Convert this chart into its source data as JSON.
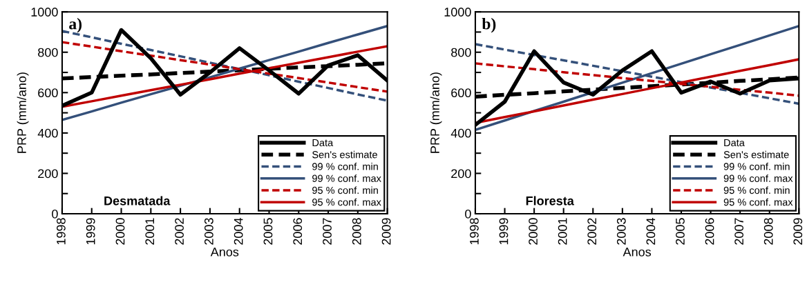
{
  "chart_data": [
    {
      "type": "line",
      "xlabel": "Anos",
      "ylabel": "PRP (mm/ano)",
      "annotations": [
        "a)",
        "Desmatada"
      ],
      "categories": [
        "1998",
        "1999",
        "2000",
        "2001",
        "2002",
        "2003",
        "2004",
        "2005",
        "2006",
        "2007",
        "2008",
        "2009"
      ],
      "ylim": [
        0,
        1000
      ],
      "yticks": [
        0,
        {
          "value": 100,
          "label": null
        },
        200,
        {
          "value": 300,
          "label": null
        },
        400,
        {
          "value": 500,
          "label": null
        },
        600,
        {
          "value": 700,
          "label": null
        },
        800,
        {
          "value": 900,
          "label": null
        },
        1000
      ],
      "grid": false,
      "legend": "bottom right",
      "marker": "none",
      "series": [
        {
          "name": "Data",
          "color": "#000000",
          "line_style": "solid",
          "values": [
            535,
            600,
            910,
            770,
            590,
            700,
            820,
            710,
            595,
            735,
            785,
            660
          ]
        },
        {
          "name": "Sen's estimate",
          "color": "#000000",
          "line_style": "dashed",
          "values": [
            670,
            677,
            684,
            690,
            697,
            704,
            711,
            718,
            725,
            731,
            738,
            745
          ]
        },
        {
          "name": "99 % conf. min",
          "color": "#34507a",
          "line_style": "dashed",
          "values": [
            905,
            874,
            842,
            811,
            780,
            748,
            717,
            686,
            654,
            623,
            591,
            560
          ]
        },
        {
          "name": "99 % conf. max",
          "color": "#34507a",
          "line_style": "solid",
          "values": [
            465,
            507,
            550,
            592,
            634,
            676,
            719,
            761,
            803,
            846,
            888,
            930
          ]
        },
        {
          "name": "95 % conf. min",
          "color": "#c00000",
          "line_style": "dashed",
          "values": [
            850,
            828,
            805,
            783,
            761,
            739,
            716,
            694,
            672,
            650,
            627,
            605
          ]
        },
        {
          "name": "95 % conf. max",
          "color": "#c00000",
          "line_style": "solid",
          "values": [
            530,
            557,
            585,
            612,
            639,
            666,
            694,
            721,
            748,
            775,
            803,
            830
          ]
        }
      ]
    },
    {
      "type": "line",
      "xlabel": "Anos",
      "ylabel": "PRP (mm/ano)",
      "annotations": [
        "b)",
        "Floresta"
      ],
      "categories": [
        "1998",
        "1999",
        "2000",
        "2001",
        "2002",
        "2003",
        "2004",
        "2005",
        "2006",
        "2007",
        "2008",
        "2009"
      ],
      "ylim": [
        0,
        1000
      ],
      "yticks": [
        0,
        {
          "value": 100,
          "label": null
        },
        200,
        {
          "value": 300,
          "label": null
        },
        400,
        {
          "value": 500,
          "label": null
        },
        600,
        {
          "value": 700,
          "label": null
        },
        800,
        {
          "value": 900,
          "label": null
        },
        1000
      ],
      "grid": false,
      "legend": "bottom right",
      "marker": "none",
      "series": [
        {
          "name": "Data",
          "color": "#000000",
          "line_style": "solid",
          "values": [
            440,
            555,
            805,
            650,
            590,
            710,
            805,
            600,
            655,
            595,
            660,
            670
          ]
        },
        {
          "name": "Sen's estimate",
          "color": "#000000",
          "line_style": "dashed",
          "values": [
            580,
            589,
            597,
            606,
            615,
            623,
            632,
            640,
            649,
            658,
            666,
            675
          ]
        },
        {
          "name": "99 % conf. min",
          "color": "#34507a",
          "line_style": "dashed",
          "values": [
            840,
            813,
            786,
            760,
            733,
            706,
            679,
            652,
            625,
            599,
            572,
            545
          ]
        },
        {
          "name": "99 % conf. max",
          "color": "#34507a",
          "line_style": "solid",
          "values": [
            415,
            462,
            509,
            555,
            602,
            649,
            696,
            743,
            790,
            836,
            883,
            930
          ]
        },
        {
          "name": "95 % conf. min",
          "color": "#c00000",
          "line_style": "dashed",
          "values": [
            745,
            730,
            716,
            701,
            687,
            672,
            658,
            643,
            629,
            614,
            600,
            585
          ]
        },
        {
          "name": "95 % conf. max",
          "color": "#c00000",
          "line_style": "solid",
          "values": [
            450,
            479,
            507,
            536,
            565,
            593,
            622,
            650,
            679,
            708,
            736,
            765
          ]
        }
      ]
    }
  ]
}
